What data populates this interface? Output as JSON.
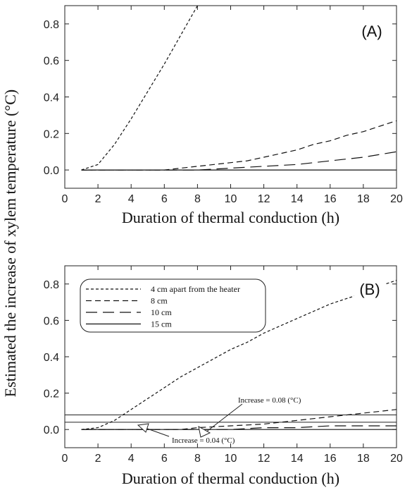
{
  "figure": {
    "ylabel": "Estimated the increase of xylem temperature (°C)"
  },
  "chart_data": [
    {
      "type": "line",
      "panel_label": "(A)",
      "xlabel": "Duration of thermal conduction (h)",
      "xlim": [
        0,
        20
      ],
      "ylim": [
        -0.1,
        0.9
      ],
      "xticks": [
        0,
        2,
        4,
        6,
        8,
        10,
        12,
        14,
        16,
        18,
        20
      ],
      "yticks": [
        0.0,
        0.2,
        0.4,
        0.6,
        0.8
      ],
      "ytick_labels": [
        "0.0",
        "0.2",
        "0.4",
        "0.6",
        "0.8"
      ],
      "grid": false,
      "series": [
        {
          "style": "short-dash",
          "x": [
            1,
            2,
            3,
            4,
            5,
            6,
            7,
            8
          ],
          "y": [
            0,
            0.03,
            0.14,
            0.28,
            0.43,
            0.58,
            0.74,
            0.9
          ]
        },
        {
          "style": "medium-dash",
          "x": [
            1,
            6,
            8,
            10,
            11,
            12,
            13,
            14,
            15,
            16,
            17,
            18,
            19,
            20
          ],
          "y": [
            0,
            0,
            0.02,
            0.04,
            0.05,
            0.07,
            0.09,
            0.11,
            0.14,
            0.16,
            0.19,
            0.21,
            0.24,
            0.27
          ]
        },
        {
          "style": "long-dash",
          "x": [
            1,
            8,
            10,
            12,
            14,
            16,
            18,
            20
          ],
          "y": [
            0,
            0,
            0.01,
            0.02,
            0.03,
            0.05,
            0.07,
            0.1
          ]
        },
        {
          "style": "solid",
          "x": [
            1,
            20
          ],
          "y": [
            0,
            0
          ]
        }
      ]
    },
    {
      "type": "line",
      "panel_label": "(B)",
      "xlabel": "Duration of thermal conduction (h)",
      "xlim": [
        0,
        20
      ],
      "ylim": [
        -0.1,
        0.9
      ],
      "xticks": [
        0,
        2,
        4,
        6,
        8,
        10,
        12,
        14,
        16,
        18,
        20
      ],
      "yticks": [
        0.0,
        0.2,
        0.4,
        0.6,
        0.8
      ],
      "ytick_labels": [
        "0.0",
        "0.2",
        "0.4",
        "0.6",
        "0.8"
      ],
      "grid": false,
      "legend": {
        "position": "top-left",
        "entries": [
          {
            "label": "4 cm apart from the heater",
            "style": "short-dash"
          },
          {
            "label": "8 cm",
            "style": "medium-dash"
          },
          {
            "label": "10 cm",
            "style": "long-dash"
          },
          {
            "label": "15 cm",
            "style": "solid"
          }
        ]
      },
      "series": [
        {
          "name": "4 cm apart from the heater",
          "style": "short-dash",
          "x": [
            1,
            2,
            3,
            4,
            5,
            6,
            7,
            8,
            9,
            10,
            11,
            12,
            13,
            14,
            15,
            16,
            17,
            18,
            19,
            20
          ],
          "y": [
            0,
            0.01,
            0.05,
            0.11,
            0.17,
            0.23,
            0.29,
            0.34,
            0.39,
            0.44,
            0.48,
            0.53,
            0.57,
            0.61,
            0.65,
            0.69,
            0.72,
            0.75,
            0.79,
            0.82
          ]
        },
        {
          "name": "8 cm",
          "style": "medium-dash",
          "x": [
            1,
            7,
            8,
            10,
            12,
            14,
            16,
            18,
            20
          ],
          "y": [
            0,
            0,
            0.01,
            0.02,
            0.03,
            0.05,
            0.07,
            0.09,
            0.11
          ]
        },
        {
          "name": "10 cm",
          "style": "long-dash",
          "x": [
            1,
            10,
            12,
            14,
            16,
            18,
            20
          ],
          "y": [
            0,
            0,
            0.01,
            0.01,
            0.02,
            0.02,
            0.02
          ]
        },
        {
          "name": "15 cm",
          "style": "solid",
          "x": [
            1,
            20
          ],
          "y": [
            0,
            0
          ]
        }
      ],
      "reference_lines": [
        {
          "y": 0.08,
          "label": "Increase = 0.08 (°C)"
        },
        {
          "y": 0.04,
          "label": "Increase = 0.04 (°C)"
        }
      ]
    }
  ]
}
